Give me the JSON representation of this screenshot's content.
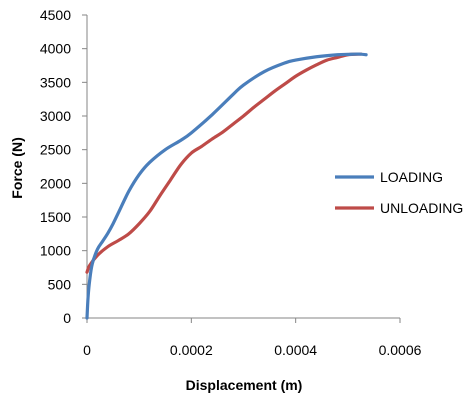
{
  "chart_data": {
    "type": "line",
    "title": "",
    "xlabel": "Displacement (m)",
    "ylabel": "Force (N)",
    "xlim": [
      0,
      0.0006
    ],
    "ylim": [
      0,
      4500
    ],
    "xticks": [
      0,
      0.0002,
      0.0004,
      0.0006
    ],
    "xtick_labels": [
      "0",
      "0.0002",
      "0.0004",
      "0.0006"
    ],
    "yticks": [
      0,
      500,
      1000,
      1500,
      2000,
      2500,
      3000,
      3500,
      4000,
      4500
    ],
    "ytick_labels": [
      "0",
      "500",
      "1000",
      "1500",
      "2000",
      "2500",
      "3000",
      "3500",
      "4000",
      "4500"
    ],
    "grid": false,
    "legend": "right",
    "series": [
      {
        "name": "LOADING",
        "color": "#4a7ebb",
        "x": [
          0,
          2e-06,
          5e-06,
          1e-05,
          2e-05,
          3e-05,
          4e-05,
          5e-05,
          6e-05,
          8e-05,
          0.0001,
          0.00012,
          0.00015,
          0.00018,
          0.0002,
          0.00024,
          0.00028,
          0.0003,
          0.00034,
          0.00038,
          0.0004,
          0.00044,
          0.00048,
          0.0005,
          0.00052,
          0.000535
        ],
        "y": [
          0,
          300,
          550,
          800,
          1020,
          1140,
          1260,
          1400,
          1560,
          1880,
          2130,
          2310,
          2500,
          2640,
          2750,
          3020,
          3320,
          3460,
          3660,
          3790,
          3830,
          3880,
          3910,
          3915,
          3920,
          3910
        ]
      },
      {
        "name": "UNLOADING",
        "color": "#be4b48",
        "x": [
          0.000525,
          0.0005,
          0.00048,
          0.00046,
          0.00044,
          0.00042,
          0.0004,
          0.00038,
          0.00036,
          0.00034,
          0.00032,
          0.0003,
          0.00028,
          0.00026,
          0.00024,
          0.00022,
          0.0002,
          0.00018,
          0.00016,
          0.00014,
          0.00012,
          0.0001,
          8e-05,
          6e-05,
          4e-05,
          2e-05,
          5e-06,
          0
        ],
        "y": [
          3920,
          3910,
          3870,
          3830,
          3760,
          3680,
          3590,
          3480,
          3370,
          3250,
          3130,
          3000,
          2880,
          2760,
          2660,
          2550,
          2450,
          2280,
          2050,
          1820,
          1580,
          1400,
          1250,
          1150,
          1060,
          930,
          780,
          680
        ]
      }
    ]
  }
}
